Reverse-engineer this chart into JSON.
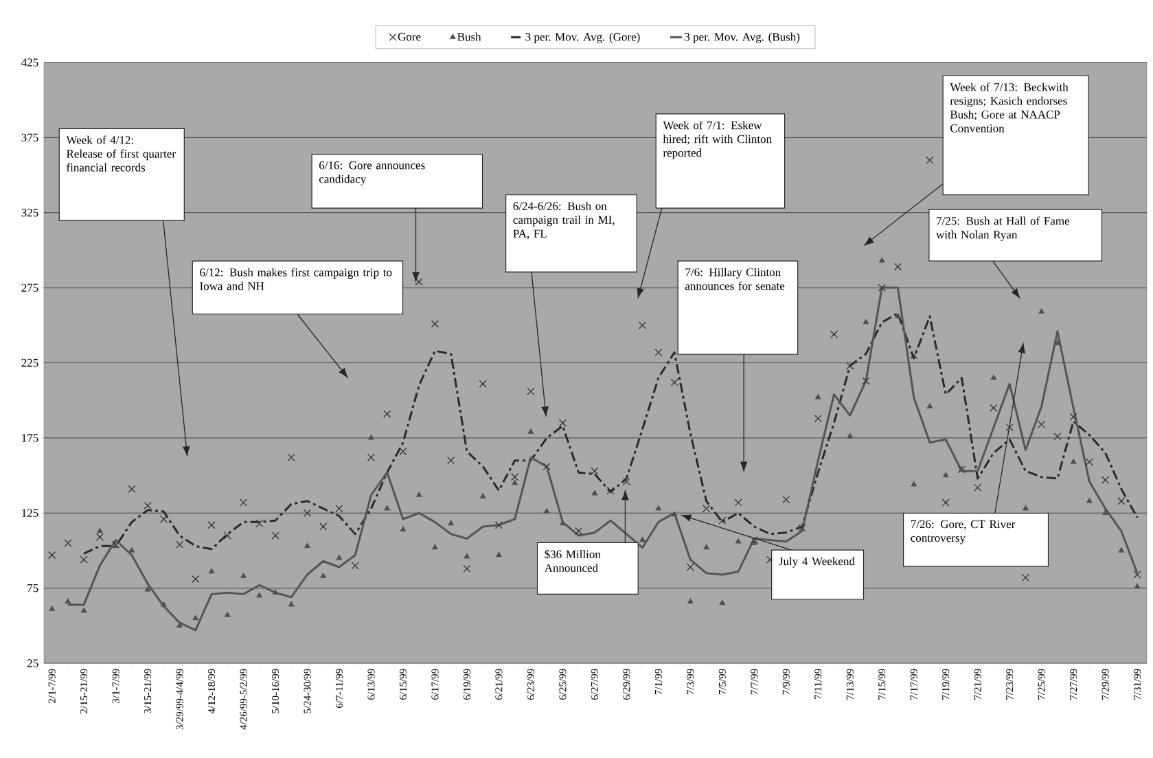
{
  "chart_data": {
    "type": "line",
    "categories": [
      "2/1-7/99",
      null,
      "2/15-21/99",
      null,
      "3/1-7/99",
      null,
      "3/15-21/99",
      null,
      "3/29/99-4/4/99",
      null,
      "4/12-18/99",
      null,
      "4/26/99-5/2/99",
      null,
      "5/10-16/99",
      null,
      "5/24-30/99",
      null,
      "6/7-11/99",
      null,
      "6/13/99",
      null,
      "6/15/99",
      null,
      "6/17/99",
      null,
      "6/19/99",
      null,
      "6/21/99",
      null,
      "6/23/99",
      null,
      "6/25/99",
      null,
      "6/27/99",
      null,
      "6/29/99",
      null,
      "7/1/99",
      null,
      "7/3/99",
      null,
      "7/5/99",
      null,
      "7/7/99",
      null,
      "7/9/99",
      null,
      "7/11/99",
      null,
      "7/13/99",
      null,
      "7/15/99",
      null,
      "7/17/99",
      null,
      "7/19/99",
      null,
      "7/21/99",
      null,
      "7/23/99",
      null,
      "7/25/99",
      null,
      "7/27/99",
      null,
      "7/29/99",
      null,
      "7/31/99"
    ],
    "series": [
      {
        "name": "Gore",
        "type": "scatter",
        "marker": "cross",
        "color": "#333333",
        "values": [
          97,
          105,
          94,
          109,
          104,
          141,
          130,
          121,
          104,
          81,
          117,
          110,
          132,
          118,
          110,
          162,
          125,
          116,
          128,
          90,
          162,
          191,
          166,
          279,
          251,
          160,
          88,
          211,
          117,
          149,
          206,
          156,
          185,
          113,
          153,
          140,
          146,
          250,
          232,
          212,
          89,
          128,
          120,
          132,
          107,
          94,
          134,
          115,
          188,
          244,
          223,
          213,
          275,
          289,
          230,
          360,
          132,
          154,
          142,
          195,
          182,
          82,
          184,
          176,
          189,
          159,
          147,
          133,
          84
        ]
      },
      {
        "name": "Bush",
        "type": "scatter",
        "marker": "triangle",
        "color": "#505050",
        "values": [
          61,
          66,
          60,
          113,
          103,
          100,
          74,
          64,
          50,
          55,
          86,
          57,
          83,
          70,
          72,
          64,
          103,
          83,
          95,
          null,
          175,
          128,
          114,
          137,
          102,
          118,
          96,
          136,
          97,
          145,
          179,
          126,
          118,
          null,
          138,
          null,
          null,
          107,
          128,
          124,
          66,
          102,
          65,
          106,
          105,
          null,
          null,
          null,
          202,
          null,
          176,
          252,
          293,
          256,
          144,
          196,
          150,
          154,
          null,
          215,
          null,
          128,
          259,
          238,
          159,
          133,
          125,
          100,
          76
        ]
      },
      {
        "name": "3 per. Mov. Avg. (Gore)",
        "line_style": "dashed",
        "color": "#2a2a2a",
        "values": [
          null,
          null,
          98,
          103,
          103,
          119,
          127,
          126,
          110,
          103,
          101,
          111,
          119,
          119,
          120,
          131,
          133,
          128,
          123,
          111,
          128,
          152,
          172,
          210,
          233,
          231,
          166,
          156,
          140,
          160,
          160,
          175,
          183,
          152,
          151,
          139,
          148,
          181,
          215,
          232,
          178,
          133,
          119,
          125,
          116,
          111,
          112,
          116,
          152,
          185,
          223,
          231,
          252,
          258,
          228,
          256,
          204,
          215,
          148,
          165,
          174,
          153,
          149,
          148,
          186,
          177,
          165,
          141,
          122
        ]
      },
      {
        "name": "3 per. Mov. Avg. (Bush)",
        "line_style": "solid",
        "color": "#555555",
        "values": [
          null,
          64,
          64,
          90,
          107,
          97,
          78,
          63,
          52,
          47,
          71,
          72,
          71,
          77,
          72,
          69,
          84,
          93,
          89,
          97,
          137,
          152,
          121,
          125,
          119,
          111,
          108,
          116,
          117,
          121,
          162,
          156,
          119,
          110,
          112,
          120,
          null,
          102,
          119,
          125,
          94,
          85,
          84,
          86,
          108,
          107,
          106,
          113,
          160,
          204,
          190,
          213,
          275,
          275,
          202,
          172,
          174,
          153,
          153,
          182,
          211,
          167,
          196,
          246,
          195,
          146,
          128,
          113,
          85
        ]
      }
    ],
    "ylim": [
      25,
      425
    ],
    "yticks": [
      25,
      75,
      125,
      175,
      225,
      275,
      325,
      375,
      425
    ],
    "grid": "y",
    "legend": "top",
    "annotations": [
      "Week of 4/12: Release of first quarter financial records",
      "6/12: Bush makes first campaign trip to Iowa and NH",
      "6/16: Gore announces candidacy",
      "6/24-6/26: Bush on campaign trail in MI, PA, FL",
      "$36 Million Announced",
      "Week of 7/1: Eskew hired; rift with Clinton reported",
      "7/6: Hillary Clinton announces for senate",
      "July 4 Weekend",
      "Week of 7/13: Beckwith resigns; Kasich endorses Bush; Gore at NAACP Convention",
      "7/25: Bush at Hall of Fame with Nolan Ryan",
      "7/26: Gore, CT River controversy"
    ]
  }
}
